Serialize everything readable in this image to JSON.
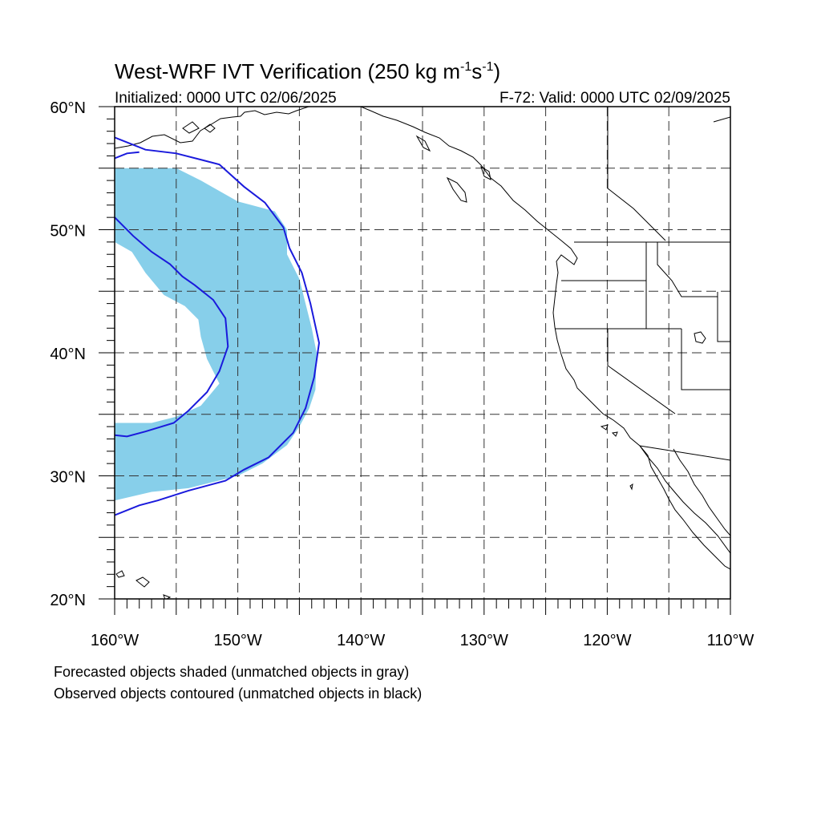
{
  "title": {
    "main": "West-WRF IVT Verification (250 kg m",
    "exp1": "-1",
    "mid": "s",
    "exp2": "-1",
    "close": ")"
  },
  "initialized": "Initialized: 0000 UTC 02/06/2025",
  "valid": "F-72: Valid: 0000 UTC 02/09/2025",
  "x_axis": {
    "range_deg_east": [
      -160,
      -110
    ],
    "major_ticks": [
      -160,
      -150,
      -140,
      -130,
      -120,
      -110
    ],
    "labels": [
      "160°W",
      "150°W",
      "140°W",
      "130°W",
      "120°W",
      "110°W"
    ],
    "gridlines": [
      -155,
      -150,
      -145,
      -140,
      -135,
      -130,
      -125,
      -120,
      -115
    ]
  },
  "y_axis": {
    "range_deg_north": [
      20,
      60
    ],
    "major_ticks": [
      20,
      30,
      40,
      50,
      60
    ],
    "labels": [
      "20°N",
      "30°N",
      "40°N",
      "50°N",
      "60°N"
    ],
    "gridlines": [
      25,
      30,
      35,
      40,
      45,
      50,
      55
    ]
  },
  "legend": {
    "line1": "Forecasted objects shaded (unmatched objects in gray)",
    "line2": "Observed objects contoured (unmatched objects in black)"
  },
  "colors": {
    "forecast_fill": "#87cfea",
    "observed_contour": "#1a1adc",
    "coastline": "#000000",
    "grid": "#000000"
  },
  "chart_data": {
    "type": "map",
    "projection": "lat-lon",
    "xlim": [
      -160,
      -110
    ],
    "ylim": [
      20,
      60
    ],
    "grid": true,
    "forecast_object": [
      [
        -160,
        55
      ],
      [
        -155,
        55
      ],
      [
        -153,
        54
      ],
      [
        -150,
        52.3
      ],
      [
        -147,
        51.5
      ],
      [
        -146,
        50
      ],
      [
        -146,
        48
      ],
      [
        -145,
        46
      ],
      [
        -144.5,
        44
      ],
      [
        -144,
        42
      ],
      [
        -143.6,
        40
      ],
      [
        -143.7,
        37
      ],
      [
        -144.2,
        35.5
      ],
      [
        -145,
        34
      ],
      [
        -146,
        32.5
      ],
      [
        -148,
        31
      ],
      [
        -150,
        30
      ],
      [
        -152,
        29.5
      ],
      [
        -154,
        29
      ],
      [
        -157,
        28.7
      ],
      [
        -160,
        28
      ],
      [
        -160,
        34.3
      ],
      [
        -157,
        34.3
      ],
      [
        -155,
        34.8
      ],
      [
        -153,
        35.7
      ],
      [
        -151.5,
        37.5
      ],
      [
        -152.5,
        39.5
      ],
      [
        -153,
        41.3
      ],
      [
        -153.2,
        42.7
      ],
      [
        -154.3,
        43.8
      ],
      [
        -156,
        44.7
      ],
      [
        -157.5,
        46.5
      ],
      [
        -158.6,
        48.2
      ],
      [
        -160,
        49
      ]
    ],
    "observed_contour_outer": [
      [
        -160,
        57.5
      ],
      [
        -157.5,
        56.5
      ],
      [
        -155,
        56.2
      ],
      [
        -151.5,
        55.3
      ],
      [
        -149.5,
        53.5
      ],
      [
        -147.8,
        52.2
      ],
      [
        -146.3,
        50.2
      ],
      [
        -145.8,
        48.5
      ],
      [
        -144.8,
        46.5
      ],
      [
        -144.1,
        44
      ],
      [
        -143.4,
        40.8
      ],
      [
        -143.8,
        38
      ],
      [
        -144.5,
        35.5
      ],
      [
        -145.5,
        33.5
      ],
      [
        -147.5,
        31.5
      ],
      [
        -149.5,
        30.5
      ],
      [
        -151,
        29.6
      ],
      [
        -154,
        28.8
      ],
      [
        -156.5,
        28
      ],
      [
        -158,
        27.6
      ],
      [
        -160,
        26.8
      ]
    ],
    "observed_contour_inner": [
      [
        -160,
        51
      ],
      [
        -158.5,
        49.5
      ],
      [
        -157,
        48.2
      ],
      [
        -155.5,
        47.2
      ],
      [
        -154.5,
        46.2
      ],
      [
        -153.5,
        45.5
      ],
      [
        -152,
        44.3
      ],
      [
        -151,
        42.8
      ],
      [
        -150.8,
        40.5
      ],
      [
        -151.5,
        38.5
      ],
      [
        -152.5,
        36.8
      ],
      [
        -154,
        35.3
      ],
      [
        -155.2,
        34.3
      ],
      [
        -157.5,
        33.6
      ],
      [
        -159,
        33.2
      ],
      [
        -160,
        33.3
      ]
    ],
    "observed_contour_small": [
      [
        -160,
        55.8
      ],
      [
        -159,
        56.2
      ],
      [
        -158,
        56.3
      ]
    ]
  }
}
